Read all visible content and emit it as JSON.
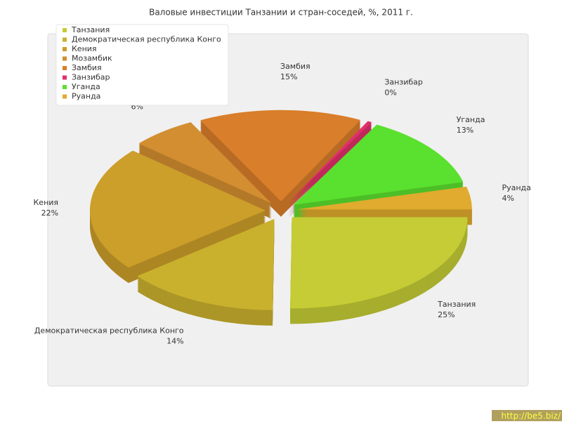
{
  "chart_data": {
    "type": "pie",
    "title": "Валовые инвестиции Танзании и стран-соседей, %, 2011 г.",
    "categories": [
      "Танзания",
      "Демократическая республика Конго",
      "Кения",
      "Мозамбик",
      "Замбия",
      "Занзибар",
      "Уганда",
      "Руанда"
    ],
    "values": [
      25,
      14,
      22,
      6,
      15,
      0.4,
      13,
      4
    ],
    "value_labels": [
      "25%",
      "14%",
      "22%",
      "6%",
      "15%",
      "0%",
      "13%",
      "4%"
    ],
    "colors": [
      "#c5cc35",
      "#c9b12e",
      "#cc9e2a",
      "#d28e30",
      "#d97e2a",
      "#e0306a",
      "#5ae02e",
      "#e0ab2e"
    ],
    "legend": "top-left"
  },
  "watermark": "http://be5.biz/"
}
